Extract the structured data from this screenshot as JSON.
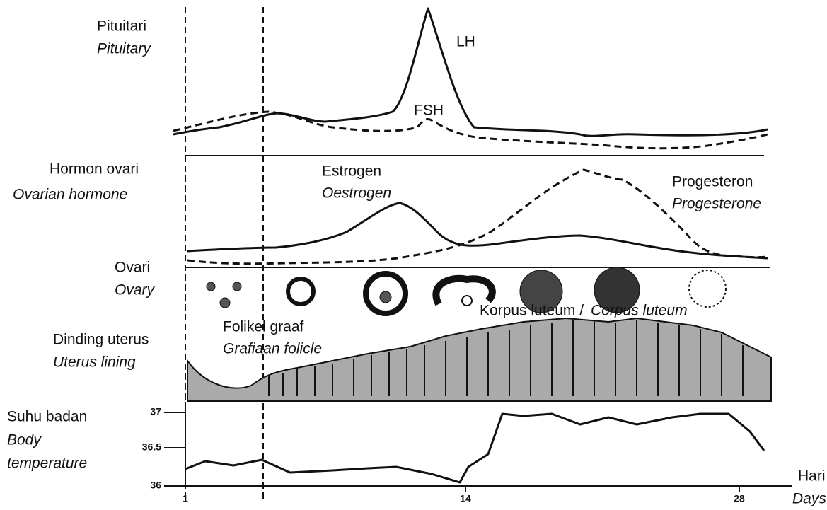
{
  "pituitary": {
    "label": "Pituitari",
    "label_en": "Pituitary",
    "lh": "LH",
    "fsh": "FSH"
  },
  "ovarian_hormone": {
    "label": "Hormon ovari",
    "label_en": "Ovarian  hormone",
    "estrogen": "Estrogen",
    "estrogen_en": "Oestrogen",
    "progesterone": "Progesteron",
    "progesterone_en": "Progesterone"
  },
  "ovary": {
    "label": "Ovari",
    "label_en": "Ovary",
    "corpus_luteum": "Korpus luteum /",
    "corpus_luteum_en": "Corpus luteum",
    "follicle": "Folikel graaf",
    "follicle_en": "Grafiaan folicle"
  },
  "uterus": {
    "label": "Dinding uterus",
    "label_en": "Uterus lining"
  },
  "temperature": {
    "label": "Suhu badan",
    "label_en_1": "Body",
    "label_en_2": "temperature",
    "ticks": [
      "37",
      "36.5",
      "36"
    ]
  },
  "days": {
    "label": "Hari",
    "label_en": "Days",
    "ticks": [
      "1",
      "14",
      "28"
    ]
  }
}
